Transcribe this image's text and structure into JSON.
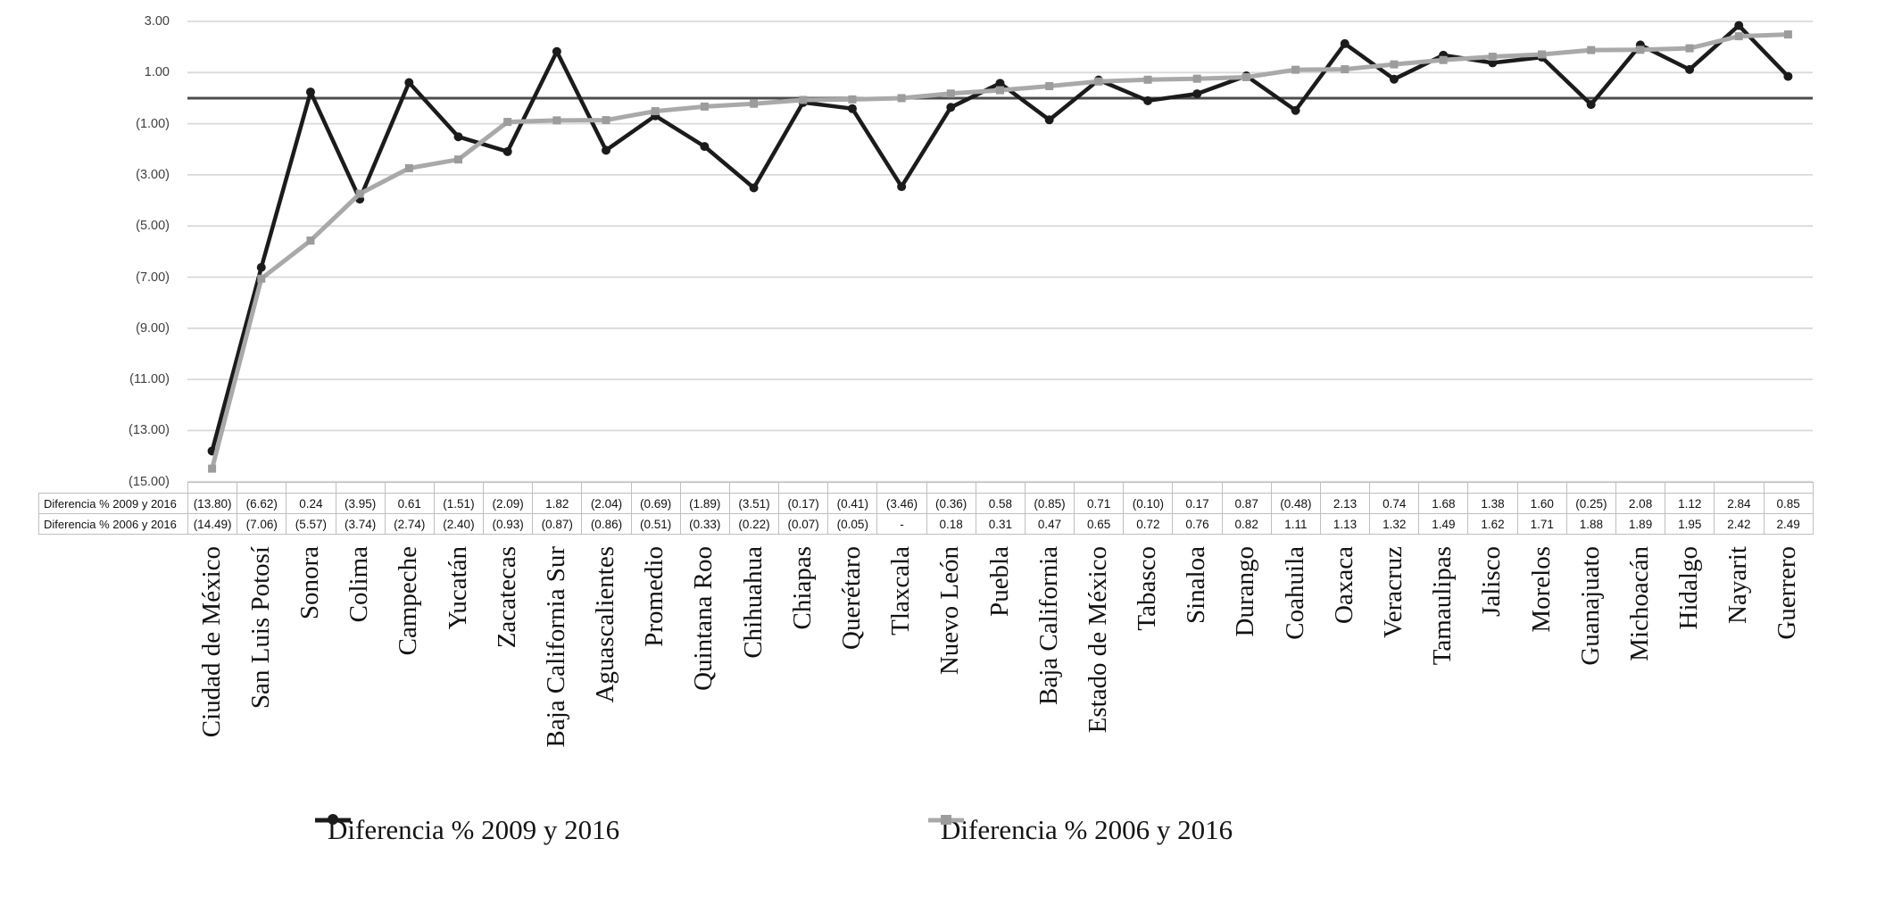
{
  "chart_data": {
    "type": "line",
    "categories": [
      "Ciudad de México",
      "San Luis Potosí",
      "Sonora",
      "Colima",
      "Campeche",
      "Yucatán",
      "Zacatecas",
      "Baja California Sur",
      "Aguascalientes",
      "Promedio",
      "Quintana Roo",
      "Chihuahua",
      "Chiapas",
      "Querétaro",
      "Tlaxcala",
      "Nuevo León",
      "Puebla",
      "Baja California",
      "Estado de México",
      "Tabasco",
      "Sinaloa",
      "Durango",
      "Coahuila",
      "Oaxaca",
      "Veracruz",
      "Tamaulipas",
      "Jalisco",
      "Morelos",
      "Guanajuato",
      "Michoacán",
      "Hidalgo",
      "Nayarit",
      "Guerrero"
    ],
    "series": [
      {
        "name": "Diferencia % 2009 y 2016",
        "color": "#1b1b1b",
        "marker": "circle",
        "values": [
          -13.8,
          -6.62,
          0.24,
          -3.95,
          0.61,
          -1.51,
          -2.09,
          1.82,
          -2.04,
          -0.69,
          -1.89,
          -3.51,
          -0.17,
          -0.41,
          -3.46,
          -0.36,
          0.58,
          -0.85,
          0.71,
          -0.1,
          0.17,
          0.87,
          -0.48,
          2.13,
          0.74,
          1.68,
          1.38,
          1.6,
          -0.25,
          2.08,
          1.12,
          2.84,
          0.85
        ]
      },
      {
        "name": "Diferencia % 2006 y 2016",
        "color": "#a9a9a9",
        "marker": "square",
        "values": [
          -14.49,
          -7.06,
          -5.57,
          -3.74,
          -2.74,
          -2.4,
          -0.93,
          -0.87,
          -0.86,
          -0.51,
          -0.33,
          -0.22,
          -0.07,
          -0.05,
          0,
          0.18,
          0.31,
          0.47,
          0.65,
          0.72,
          0.76,
          0.82,
          1.11,
          1.13,
          1.32,
          1.49,
          1.62,
          1.71,
          1.88,
          1.89,
          1.95,
          2.42,
          2.49
        ]
      }
    ],
    "title": "",
    "xlabel": "",
    "ylabel": "",
    "ylim": [
      -15,
      3
    ],
    "y_tick_labels": [
      "3.00",
      "1.00",
      "(1.00)",
      "(3.00)",
      "(5.00)",
      "(7.00)",
      "(9.00)",
      "(11.00)",
      "(13.00)",
      "(15.00)"
    ],
    "grid": true,
    "zero_line": true,
    "legend_position": "bottom"
  },
  "table": {
    "rows": [
      {
        "label": "Diferencia % 2009 y 2016",
        "values": [
          "(13.80)",
          "(6.62)",
          "0.24",
          "(3.95)",
          "0.61",
          "(1.51)",
          "(2.09)",
          "1.82",
          "(2.04)",
          "(0.69)",
          "(1.89)",
          "(3.51)",
          "(0.17)",
          "(0.41)",
          "(3.46)",
          "(0.36)",
          "0.58",
          "(0.85)",
          "0.71",
          "(0.10)",
          "0.17",
          "0.87",
          "(0.48)",
          "2.13",
          "0.74",
          "1.68",
          "1.38",
          "1.60",
          "(0.25)",
          "2.08",
          "1.12",
          "2.84",
          "0.85"
        ]
      },
      {
        "label": "Diferencia % 2006 y 2016",
        "values": [
          "(14.49)",
          "(7.06)",
          "(5.57)",
          "(3.74)",
          "(2.74)",
          "(2.40)",
          "(0.93)",
          "(0.87)",
          "(0.86)",
          "(0.51)",
          "(0.33)",
          "(0.22)",
          "(0.07)",
          "(0.05)",
          "-",
          "0.18",
          "0.31",
          "0.47",
          "0.65",
          "0.72",
          "0.76",
          "0.82",
          "1.11",
          "1.13",
          "1.32",
          "1.49",
          "1.62",
          "1.71",
          "1.88",
          "1.89",
          "1.95",
          "2.42",
          "2.49"
        ]
      }
    ]
  },
  "legend": {
    "items": [
      {
        "label": "Diferencia % 2009 y 2016",
        "color": "#1b1b1b"
      },
      {
        "label": "Diferencia % 2006 y 2016",
        "color": "#a9a9a9"
      }
    ]
  },
  "colors": {
    "gridline": "#d9d9d9",
    "zero_line": "#4d4d4d",
    "table_border": "#bfbfbf",
    "series_2009": "#1b1b1b",
    "series_2006": "#a9a9a9",
    "series_2006_marker": "#9c9c9c"
  }
}
